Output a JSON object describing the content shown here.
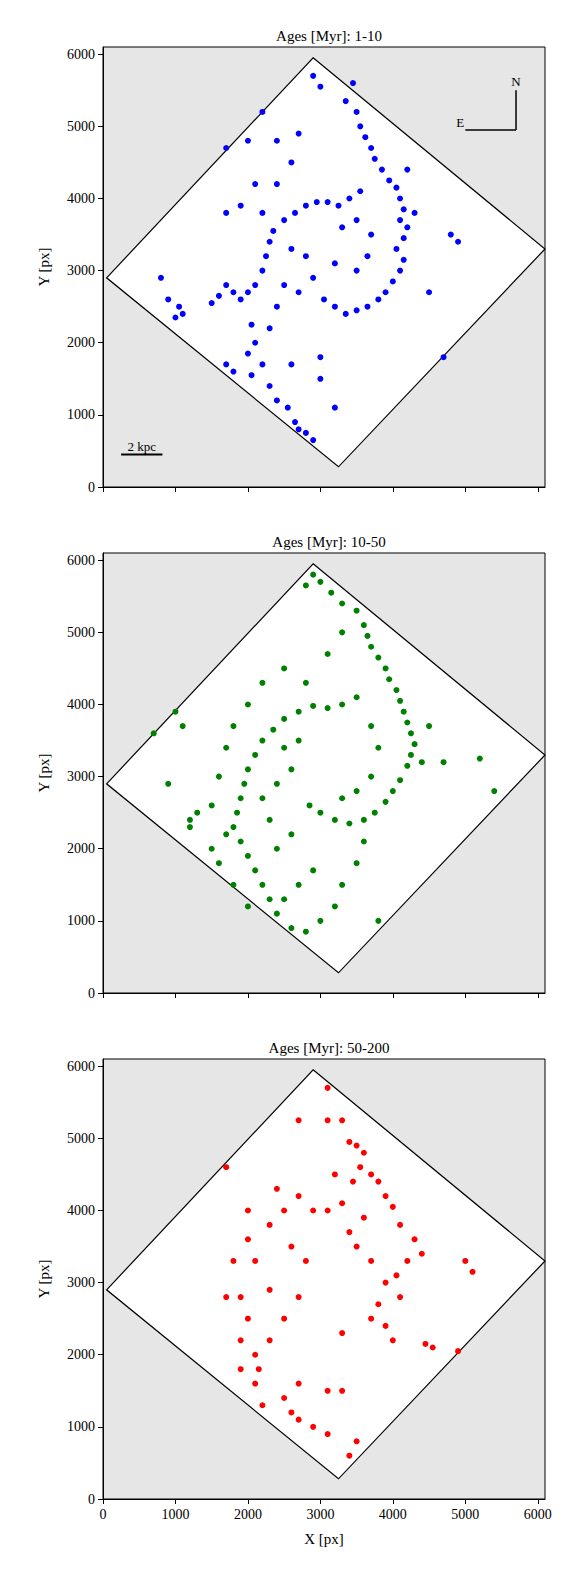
{
  "chart_data": [
    {
      "type": "scatter",
      "title": "Ages [Myr]: 1-10",
      "ylabel": "Y [px]",
      "color": "#0000ff",
      "marker": "circle",
      "grid": false,
      "tick_labels": "y",
      "xlim": [
        0,
        6100
      ],
      "ylim": [
        0,
        6100
      ],
      "xticks": [
        0,
        1000,
        2000,
        3000,
        4000,
        5000,
        6000
      ],
      "yticks": [
        0,
        1000,
        2000,
        3000,
        4000,
        5000,
        6000
      ],
      "footprint": [
        [
          2900,
          5950
        ],
        [
          6100,
          3300
        ],
        [
          3250,
          280
        ],
        [
          50,
          2900
        ]
      ],
      "annotations": [
        "N",
        "E",
        "2 kpc"
      ],
      "x": [
        2900,
        3000,
        3350,
        3500,
        3550,
        3620,
        3700,
        3750,
        3850,
        3950,
        4050,
        4100,
        4150,
        4100,
        4200,
        4150,
        4050,
        4150,
        4100,
        4000,
        3900,
        3800,
        3650,
        3500,
        3350,
        3200,
        3050,
        3550,
        3400,
        3250,
        3100,
        2950,
        2800,
        2650,
        2500,
        2350,
        2300,
        2250,
        2200,
        2100,
        2000,
        1900,
        1800,
        1700,
        1600,
        1500,
        2050,
        2100,
        2000,
        2200,
        2050,
        2300,
        2400,
        2550,
        2650,
        2800,
        2900,
        2700,
        3000,
        3200,
        1700,
        1800,
        1100,
        1050,
        900,
        800,
        1000,
        1700,
        2000,
        2200,
        2400,
        2700,
        2600,
        2400,
        2100,
        1900,
        1700,
        2200,
        2600,
        2800,
        3300,
        3500,
        3700,
        3650,
        3500,
        2500,
        2700,
        2900,
        3200,
        2400,
        2300,
        4200,
        4300,
        4500,
        4800,
        4900,
        4700,
        3450,
        3000,
        2600
      ],
      "values": [
        5700,
        5550,
        5350,
        5200,
        5000,
        4850,
        4700,
        4550,
        4400,
        4250,
        4150,
        4000,
        3850,
        3700,
        3600,
        3450,
        3300,
        3150,
        3000,
        2850,
        2700,
        2600,
        2500,
        2450,
        2400,
        2500,
        2600,
        4100,
        4000,
        3900,
        3950,
        3950,
        3900,
        3800,
        3700,
        3550,
        3400,
        3200,
        3000,
        2800,
        2700,
        2600,
        2700,
        2800,
        2650,
        2550,
        2250,
        2000,
        1850,
        1700,
        1550,
        1400,
        1200,
        1100,
        900,
        750,
        650,
        800,
        1500,
        1100,
        1700,
        1600,
        2400,
        2500,
        2600,
        2900,
        2350,
        4700,
        4800,
        5200,
        4800,
        4900,
        4500,
        4200,
        4200,
        3900,
        3800,
        3800,
        3300,
        3200,
        3600,
        3700,
        3500,
        3200,
        3000,
        2800,
        2700,
        2900,
        3100,
        2500,
        2200,
        4400,
        3800,
        2700,
        3500,
        3400,
        1800,
        5600,
        1800,
        1700
      ]
    },
    {
      "type": "scatter",
      "title": "Ages [Myr]: 10-50",
      "ylabel": "Y [px]",
      "color": "#008000",
      "marker": "circle",
      "grid": false,
      "tick_labels": "y",
      "xlim": [
        0,
        6100
      ],
      "ylim": [
        0,
        6100
      ],
      "xticks": [
        0,
        1000,
        2000,
        3000,
        4000,
        5000,
        6000
      ],
      "yticks": [
        0,
        1000,
        2000,
        3000,
        4000,
        5000,
        6000
      ],
      "footprint": [
        [
          2900,
          5950
        ],
        [
          6100,
          3300
        ],
        [
          3250,
          280
        ],
        [
          50,
          2900
        ]
      ],
      "x": [
        2800,
        2900,
        3000,
        3150,
        3300,
        3500,
        3600,
        3650,
        3700,
        3800,
        3900,
        3950,
        4050,
        4100,
        4150,
        4200,
        4250,
        4300,
        4250,
        4200,
        4100,
        4000,
        3900,
        3750,
        3600,
        3400,
        3200,
        3000,
        2850,
        3500,
        3300,
        3100,
        2900,
        2700,
        2500,
        2350,
        2200,
        2100,
        2000,
        1950,
        1900,
        1850,
        1800,
        1900,
        2000,
        2100,
        2200,
        2300,
        2400,
        2600,
        2800,
        3000,
        3200,
        2500,
        2700,
        2900,
        2400,
        2600,
        2300,
        2200,
        2400,
        2600,
        2500,
        2700,
        3700,
        3800,
        3700,
        3500,
        3300,
        2800,
        2500,
        2200,
        2000,
        1800,
        1700,
        1600,
        1500,
        1300,
        1200,
        900,
        700,
        1000,
        1100,
        1200,
        1700,
        1500,
        1600,
        1800,
        2000,
        3300,
        3500,
        3600,
        4400,
        4500,
        4700,
        5200,
        5400,
        3100,
        3300,
        3800
      ],
      "values": [
        5650,
        5800,
        5700,
        5550,
        5400,
        5300,
        5100,
        4950,
        4800,
        4650,
        4500,
        4350,
        4200,
        4050,
        3900,
        3750,
        3600,
        3450,
        3300,
        3150,
        2950,
        2800,
        2650,
        2500,
        2400,
        2350,
        2400,
        2500,
        2600,
        4100,
        4000,
        3950,
        3980,
        3900,
        3800,
        3650,
        3500,
        3300,
        3100,
        2900,
        2700,
        2500,
        2300,
        2100,
        1900,
        1700,
        1500,
        1300,
        1100,
        900,
        850,
        1000,
        1200,
        1300,
        1500,
        1700,
        2000,
        2200,
        2400,
        2700,
        2900,
        3100,
        3400,
        3500,
        3700,
        3400,
        3000,
        2800,
        2700,
        4300,
        4500,
        4300,
        4000,
        3700,
        3400,
        3000,
        2600,
        2500,
        2300,
        2900,
        3600,
        3900,
        3700,
        2400,
        2200,
        2000,
        1800,
        1500,
        1200,
        1500,
        1800,
        2100,
        3200,
        3700,
        3200,
        3250,
        2800,
        4700,
        5000,
        1000
      ]
    },
    {
      "type": "scatter",
      "title": "Ages [Myr]: 50-200",
      "xlabel": "X [px]",
      "ylabel": "Y [px]",
      "color": "#ff0000",
      "marker": "circle",
      "grid": false,
      "xlim": [
        0,
        6100
      ],
      "ylim": [
        0,
        6100
      ],
      "xticks": [
        0,
        1000,
        2000,
        3000,
        4000,
        5000,
        6000
      ],
      "yticks": [
        0,
        1000,
        2000,
        3000,
        4000,
        5000,
        6000
      ],
      "footprint": [
        [
          2900,
          5950
        ],
        [
          6100,
          3300
        ],
        [
          3250,
          280
        ],
        [
          50,
          2900
        ]
      ],
      "x": [
        3100,
        3300,
        3400,
        3500,
        3600,
        3550,
        3700,
        3450,
        3800,
        3900,
        4000,
        4100,
        4300,
        4400,
        4200,
        4050,
        3900,
        4100,
        3800,
        3700,
        3900,
        4000,
        4450,
        4550,
        4900,
        5000,
        5100,
        3300,
        3100,
        2900,
        2700,
        2500,
        2300,
        2000,
        2000,
        2100,
        1800,
        1700,
        1900,
        2000,
        1900,
        2100,
        2150,
        2100,
        1900,
        2200,
        2500,
        2600,
        2700,
        2900,
        3100,
        3400,
        3500,
        3300,
        3100,
        2700,
        2500,
        2700,
        2800,
        2600,
        3300,
        3500,
        3700,
        3400,
        2300,
        2700,
        3100,
        2400,
        1700,
        3200,
        3600,
        2300
      ],
      "values": [
        5700,
        5250,
        4950,
        4900,
        4800,
        4600,
        4500,
        4400,
        4400,
        4200,
        4050,
        3800,
        3600,
        3400,
        3300,
        3100,
        3000,
        2800,
        2700,
        2500,
        2400,
        2200,
        2150,
        2100,
        2050,
        3300,
        3150,
        4100,
        4000,
        4000,
        4200,
        4000,
        3800,
        4000,
        3600,
        3300,
        3300,
        2800,
        2800,
        2500,
        2200,
        2000,
        1800,
        1600,
        1800,
        1300,
        1400,
        1200,
        1100,
        1000,
        900,
        600,
        800,
        1500,
        1500,
        1600,
        2500,
        2800,
        3300,
        3500,
        2300,
        3500,
        3300,
        3700,
        2200,
        5250,
        5250,
        4300,
        4600,
        4500,
        3900,
        2900
      ]
    }
  ]
}
